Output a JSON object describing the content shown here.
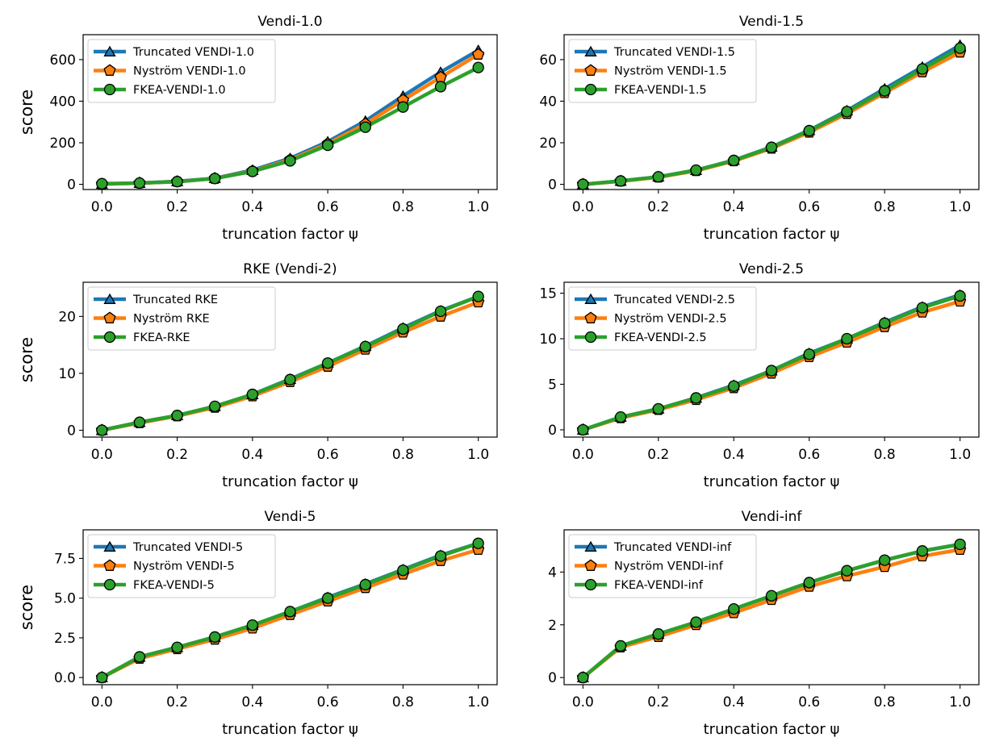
{
  "colors": {
    "truncated": "#1f77b4",
    "nystrom": "#ff7f0e",
    "fkea": "#2ca02c",
    "marker_edge": "#000000"
  },
  "chart_data": [
    {
      "type": "line",
      "title": "Vendi-1.0",
      "xlabel": "truncation factor ψ",
      "ylabel": "score",
      "x": [
        0.0,
        0.1,
        0.2,
        0.3,
        0.4,
        0.5,
        0.6,
        0.7,
        0.8,
        0.9,
        1.0
      ],
      "xlim": [
        -0.05,
        1.05
      ],
      "ylim": [
        -25,
        720
      ],
      "xticks": [
        0.0,
        0.2,
        0.4,
        0.6,
        0.8,
        1.0
      ],
      "xtick_labels": [
        "0.0",
        "0.2",
        "0.4",
        "0.6",
        "0.8",
        "1.0"
      ],
      "yticks": [
        0,
        200,
        400,
        600
      ],
      "ytick_labels": [
        "0",
        "200",
        "400",
        "600"
      ],
      "legend_position": "upper-left",
      "series": [
        {
          "name": "Truncated VENDI-1.0",
          "marker": "triangle",
          "values": [
            1,
            6,
            14,
            29,
            68,
            125,
            205,
            305,
            425,
            540,
            645
          ]
        },
        {
          "name": "Nyström VENDI-1.0",
          "marker": "pentagon",
          "values": [
            1,
            6,
            13,
            28,
            64,
            118,
            195,
            290,
            405,
            515,
            625
          ]
        },
        {
          "name": "FKEA-VENDI-1.0",
          "marker": "circle",
          "values": [
            3,
            6,
            13,
            28,
            62,
            113,
            188,
            275,
            372,
            470,
            562
          ]
        }
      ]
    },
    {
      "type": "line",
      "title": "Vendi-1.5",
      "xlabel": "truncation factor ψ",
      "ylabel": "",
      "x": [
        0.0,
        0.1,
        0.2,
        0.3,
        0.4,
        0.5,
        0.6,
        0.7,
        0.8,
        0.9,
        1.0
      ],
      "xlim": [
        -0.05,
        1.05
      ],
      "ylim": [
        -2.5,
        72
      ],
      "xticks": [
        0.0,
        0.2,
        0.4,
        0.6,
        0.8,
        1.0
      ],
      "xtick_labels": [
        "0.0",
        "0.2",
        "0.4",
        "0.6",
        "0.8",
        "1.0"
      ],
      "yticks": [
        0,
        20,
        40,
        60
      ],
      "ytick_labels": [
        "0",
        "20",
        "40",
        "60"
      ],
      "legend_position": "upper-left",
      "series": [
        {
          "name": "Truncated VENDI-1.5",
          "marker": "triangle",
          "values": [
            0,
            1.6,
            3.6,
            6.8,
            11.6,
            18,
            26,
            35.5,
            46,
            56.5,
            67
          ]
        },
        {
          "name": "Nyström VENDI-1.5",
          "marker": "pentagon",
          "values": [
            0,
            1.5,
            3.4,
            6.5,
            11.2,
            17.3,
            25,
            34,
            44,
            54,
            63.5
          ]
        },
        {
          "name": "FKEA-VENDI-1.5",
          "marker": "circle",
          "values": [
            0,
            1.6,
            3.6,
            6.8,
            11.5,
            17.8,
            25.8,
            35,
            45,
            55.5,
            65.5
          ]
        }
      ]
    },
    {
      "type": "line",
      "title": "RKE (Vendi-2)",
      "xlabel": "truncation factor ψ",
      "ylabel": "score",
      "x": [
        0.0,
        0.1,
        0.2,
        0.3,
        0.4,
        0.5,
        0.6,
        0.7,
        0.8,
        0.9,
        1.0
      ],
      "xlim": [
        -0.05,
        1.05
      ],
      "ylim": [
        -1.2,
        26
      ],
      "xticks": [
        0.0,
        0.2,
        0.4,
        0.6,
        0.8,
        1.0
      ],
      "xtick_labels": [
        "0.0",
        "0.2",
        "0.4",
        "0.6",
        "0.8",
        "1.0"
      ],
      "yticks": [
        0,
        10,
        20
      ],
      "ytick_labels": [
        "0",
        "10",
        "20"
      ],
      "legend_position": "upper-left",
      "series": [
        {
          "name": "Truncated RKE",
          "marker": "triangle",
          "values": [
            0,
            1.4,
            2.6,
            4.2,
            6.3,
            9.0,
            11.8,
            14.8,
            18.0,
            21.0,
            23.5
          ]
        },
        {
          "name": "Nyström RKE",
          "marker": "pentagon",
          "values": [
            0,
            1.3,
            2.5,
            4.0,
            6.0,
            8.5,
            11.2,
            14.2,
            17.2,
            20.0,
            22.5
          ]
        },
        {
          "name": "FKEA-RKE",
          "marker": "circle",
          "values": [
            0,
            1.4,
            2.6,
            4.2,
            6.3,
            8.9,
            11.8,
            14.7,
            17.8,
            20.9,
            23.5
          ]
        }
      ]
    },
    {
      "type": "line",
      "title": "Vendi-2.5",
      "xlabel": "truncation factor ψ",
      "ylabel": "",
      "x": [
        0.0,
        0.1,
        0.2,
        0.3,
        0.4,
        0.5,
        0.6,
        0.7,
        0.8,
        0.9,
        1.0
      ],
      "xlim": [
        -0.05,
        1.05
      ],
      "ylim": [
        -0.8,
        16.2
      ],
      "xticks": [
        0.0,
        0.2,
        0.4,
        0.6,
        0.8,
        1.0
      ],
      "xtick_labels": [
        "0.0",
        "0.2",
        "0.4",
        "0.6",
        "0.8",
        "1.0"
      ],
      "yticks": [
        0,
        5,
        10,
        15
      ],
      "ytick_labels": [
        "0",
        "5",
        "10",
        "15"
      ],
      "legend_position": "upper-left",
      "series": [
        {
          "name": "Truncated VENDI-2.5",
          "marker": "triangle",
          "values": [
            0,
            1.4,
            2.3,
            3.5,
            4.9,
            6.5,
            8.4,
            10.0,
            11.8,
            13.5,
            14.8
          ]
        },
        {
          "name": "Nyström VENDI-2.5",
          "marker": "pentagon",
          "values": [
            0,
            1.3,
            2.2,
            3.3,
            4.6,
            6.2,
            8.0,
            9.6,
            11.3,
            12.9,
            14.1
          ]
        },
        {
          "name": "FKEA-VENDI-2.5",
          "marker": "circle",
          "values": [
            0,
            1.4,
            2.3,
            3.5,
            4.8,
            6.5,
            8.3,
            10.0,
            11.7,
            13.4,
            14.7
          ]
        }
      ]
    },
    {
      "type": "line",
      "title": "Vendi-5",
      "xlabel": "truncation factor ψ",
      "ylabel": "score",
      "x": [
        0.0,
        0.1,
        0.2,
        0.3,
        0.4,
        0.5,
        0.6,
        0.7,
        0.8,
        0.9,
        1.0
      ],
      "xlim": [
        -0.05,
        1.05
      ],
      "ylim": [
        -0.45,
        9.3
      ],
      "xticks": [
        0.0,
        0.2,
        0.4,
        0.6,
        0.8,
        1.0
      ],
      "xtick_labels": [
        "0.0",
        "0.2",
        "0.4",
        "0.6",
        "0.8",
        "1.0"
      ],
      "yticks": [
        0,
        2.5,
        5,
        7.5
      ],
      "ytick_labels": [
        "0.0",
        "2.5",
        "5.0",
        "7.5"
      ],
      "legend_position": "upper-left",
      "series": [
        {
          "name": "Truncated VENDI-5",
          "marker": "triangle",
          "values": [
            0,
            1.3,
            1.9,
            2.55,
            3.3,
            4.15,
            5.05,
            5.9,
            6.8,
            7.7,
            8.45
          ]
        },
        {
          "name": "Nyström VENDI-5",
          "marker": "pentagon",
          "values": [
            0,
            1.2,
            1.8,
            2.4,
            3.1,
            3.95,
            4.8,
            5.65,
            6.5,
            7.35,
            8.05
          ]
        },
        {
          "name": "FKEA-VENDI-5",
          "marker": "circle",
          "values": [
            0,
            1.3,
            1.9,
            2.55,
            3.3,
            4.15,
            5.0,
            5.85,
            6.75,
            7.65,
            8.45
          ]
        }
      ]
    },
    {
      "type": "line",
      "title": "Vendi-inf",
      "xlabel": "truncation factor ψ",
      "ylabel": "",
      "x": [
        0.0,
        0.1,
        0.2,
        0.3,
        0.4,
        0.5,
        0.6,
        0.7,
        0.8,
        0.9,
        1.0
      ],
      "xlim": [
        -0.05,
        1.05
      ],
      "ylim": [
        -0.27,
        5.6
      ],
      "xticks": [
        0.0,
        0.2,
        0.4,
        0.6,
        0.8,
        1.0
      ],
      "xtick_labels": [
        "0.0",
        "0.2",
        "0.4",
        "0.6",
        "0.8",
        "1.0"
      ],
      "yticks": [
        0,
        2,
        4
      ],
      "ytick_labels": [
        "0",
        "2",
        "4"
      ],
      "legend_position": "upper-left",
      "series": [
        {
          "name": "Truncated VENDI-inf",
          "marker": "triangle",
          "values": [
            0,
            1.2,
            1.65,
            2.1,
            2.6,
            3.1,
            3.6,
            4.05,
            4.45,
            4.8,
            5.05
          ]
        },
        {
          "name": "Nyström VENDI-inf",
          "marker": "pentagon",
          "values": [
            0,
            1.15,
            1.55,
            2.0,
            2.45,
            2.95,
            3.45,
            3.85,
            4.2,
            4.6,
            4.85
          ]
        },
        {
          "name": "FKEA-VENDI-inf",
          "marker": "circle",
          "values": [
            0,
            1.2,
            1.65,
            2.1,
            2.6,
            3.1,
            3.6,
            4.05,
            4.45,
            4.8,
            5.05
          ]
        }
      ]
    }
  ]
}
